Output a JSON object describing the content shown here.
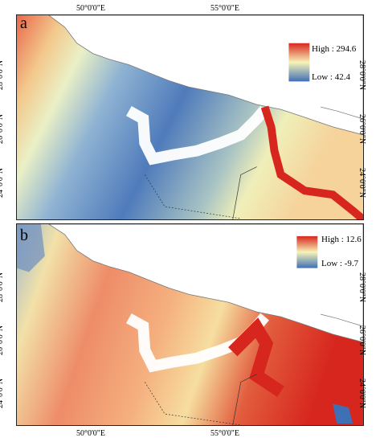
{
  "panels": [
    {
      "label": "a",
      "legend": {
        "high": "High : 294.6",
        "low": "Low : 42.4"
      },
      "colors": {
        "high": "#d7261e",
        "mid": "#f7f3b8",
        "low": "#3f6fb5"
      }
    },
    {
      "label": "b",
      "legend": {
        "high": "High : 12.6",
        "low": "Low : -9.7"
      },
      "colors": {
        "high": "#d7261e",
        "mid": "#f7f3b8",
        "low": "#3f6fb5"
      }
    }
  ],
  "axes": {
    "top": [
      "50°0'0\"E",
      "55°0'0\"E"
    ],
    "bottom": [
      "50°0'0\"E",
      "55°0'0\"E"
    ],
    "lat_a": [
      "28°0'0\"N",
      "26°0'0\"N",
      "24°0'0\"N"
    ],
    "lat_b": [
      "28°0'0\"N",
      "26°0'0\"N",
      "24°0'0\"N"
    ]
  }
}
